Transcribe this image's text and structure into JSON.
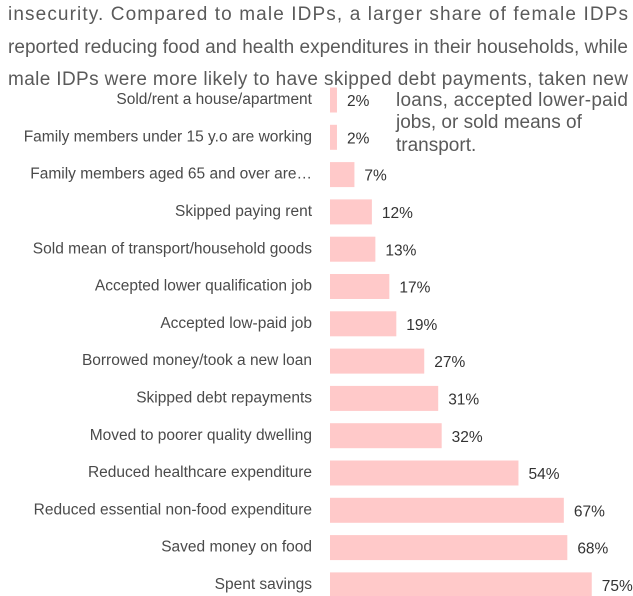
{
  "paragraph": {
    "lines": [
      "insecurity. Compared to male IDPs, a larger share of female IDPs",
      "reported reducing food and health expenditures in their households, while",
      "male IDPs were more likely to have skipped debt payments, taken new",
      "loans, accepted lower-paid",
      "jobs, or sold means of",
      "transport."
    ]
  },
  "chart_data": {
    "type": "bar",
    "orientation": "horizontal",
    "color": "#ffc9c9",
    "categories": [
      "Sold/rent a house/apartment",
      "Family members under 15 y.o are working",
      "Family members aged 65 and over are…",
      "Skipped paying rent",
      "Sold mean of transport/household goods",
      "Accepted lower qualification job",
      "Accepted low-paid job",
      "Borrowed money/took a new loan",
      "Skipped debt repayments",
      "Moved to poorer quality dwelling",
      "Reduced healthcare expenditure",
      "Reduced essential non-food expenditure",
      "Saved money on food",
      "Spent savings"
    ],
    "values": [
      2,
      2,
      7,
      12,
      13,
      17,
      19,
      27,
      31,
      32,
      54,
      67,
      68,
      75
    ],
    "value_labels": [
      "2%",
      "2%",
      "7%",
      "12%",
      "13%",
      "17%",
      "19%",
      "27%",
      "31%",
      "32%",
      "54%",
      "67%",
      "68%",
      "75%"
    ]
  }
}
